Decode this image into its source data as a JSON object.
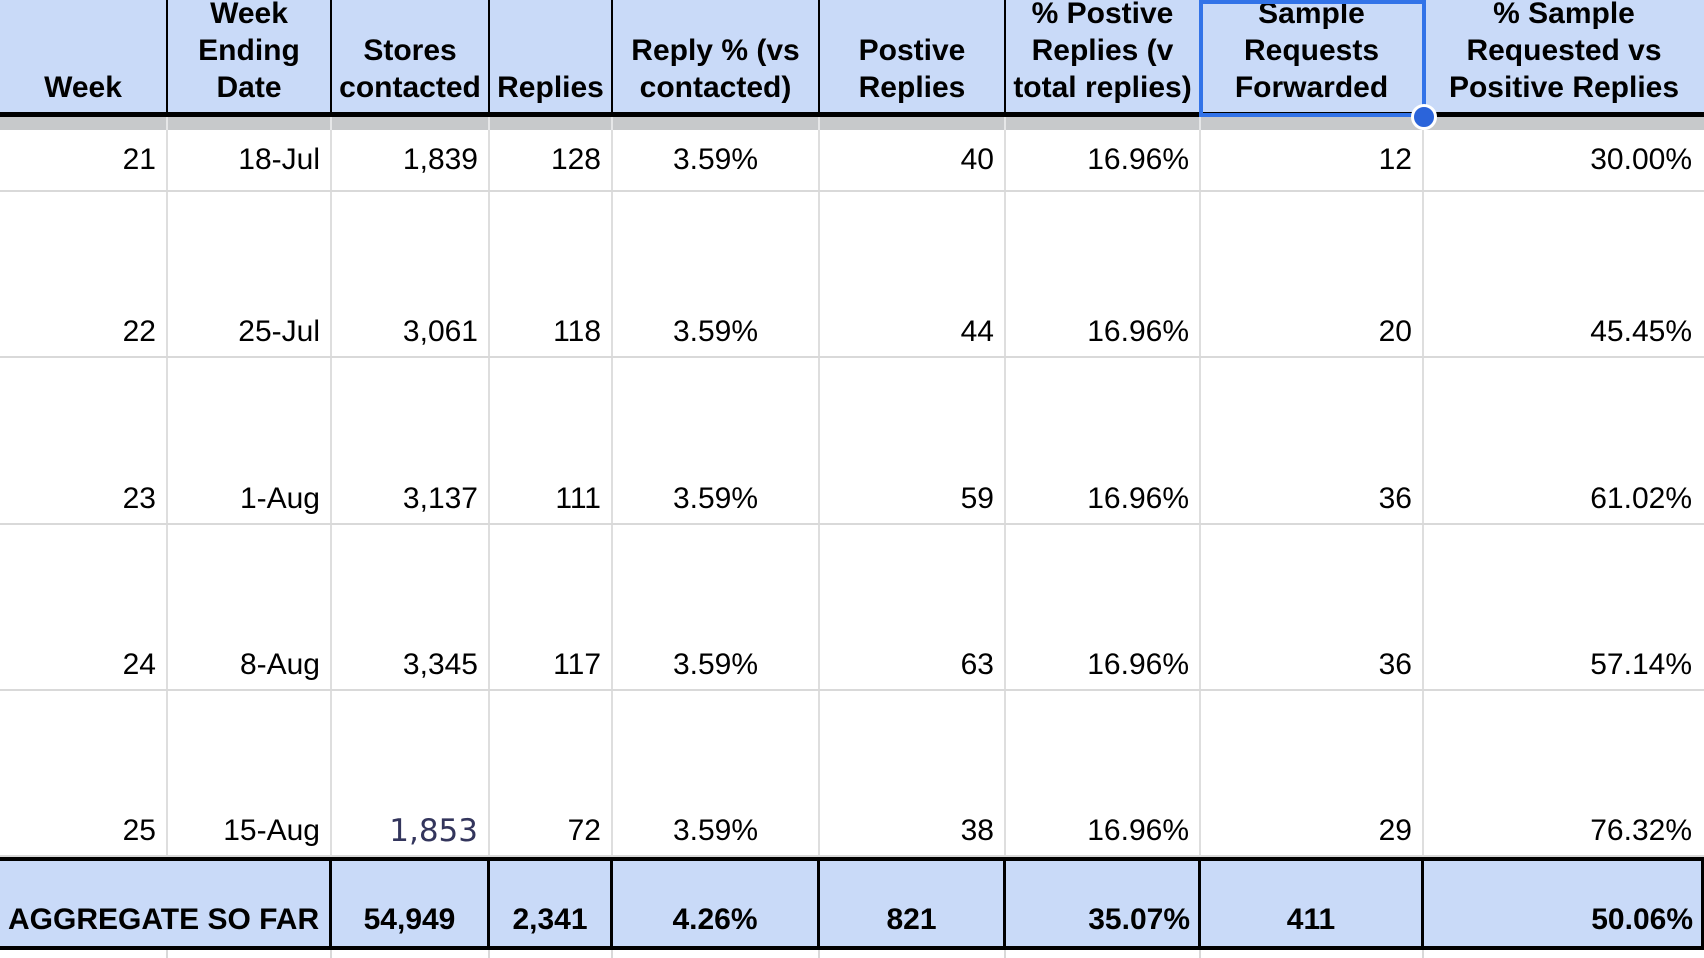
{
  "colors": {
    "header_fill": "#c9daf8",
    "aggregate_fill": "#c9daf8",
    "selection_blue": "#3273e8",
    "fill_handle_blue": "#2b64da",
    "frozen_bar_gray": "#c7c9cb",
    "edited_cell_text": "#33355c",
    "gridline_gray": "#d9d9d9",
    "border_black": "#000000"
  },
  "table": {
    "columns": [
      {
        "label": "Week",
        "align": "right"
      },
      {
        "label": "Week Ending Date",
        "align": "right"
      },
      {
        "label": "Stores contacted",
        "align": "right"
      },
      {
        "label": "Replies",
        "align": "right"
      },
      {
        "label": "Reply % (vs contacted)",
        "align": "center"
      },
      {
        "label": "Postive Replies",
        "align": "right"
      },
      {
        "label": "% Postive Replies (v total replies)",
        "align": "right"
      },
      {
        "label": "Sample Requests Forwarded",
        "align": "right"
      },
      {
        "label": "% Sample Requested vs Positive Replies",
        "align": "right"
      }
    ],
    "rows": [
      [
        "21",
        "18-Jul",
        "1,839",
        "128",
        "3.59%",
        "40",
        "16.96%",
        "12",
        "30.00%"
      ],
      [
        "22",
        "25-Jul",
        "3,061",
        "118",
        "3.59%",
        "44",
        "16.96%",
        "20",
        "45.45%"
      ],
      [
        "23",
        "1-Aug",
        "3,137",
        "111",
        "3.59%",
        "59",
        "16.96%",
        "36",
        "61.02%"
      ],
      [
        "24",
        "8-Aug",
        "3,345",
        "117",
        "3.59%",
        "63",
        "16.96%",
        "36",
        "57.14%"
      ],
      [
        "25",
        "15-Aug",
        "1,853",
        "72",
        "3.59%",
        "38",
        "16.96%",
        "29",
        "76.32%"
      ]
    ],
    "special_cell": {
      "row": 4,
      "col": 2,
      "value": "1,853"
    },
    "aggregate": {
      "label": "AGGREGATE SO FAR",
      "values": [
        "54,949",
        "2,341",
        "4.26%",
        "821",
        "35.07%",
        "411",
        "50.06%"
      ],
      "aligns": [
        "center",
        "center",
        "center",
        "center",
        "right",
        "center",
        "right"
      ]
    }
  },
  "selection": {
    "selected_header": "Sample Requests Forwarded"
  }
}
